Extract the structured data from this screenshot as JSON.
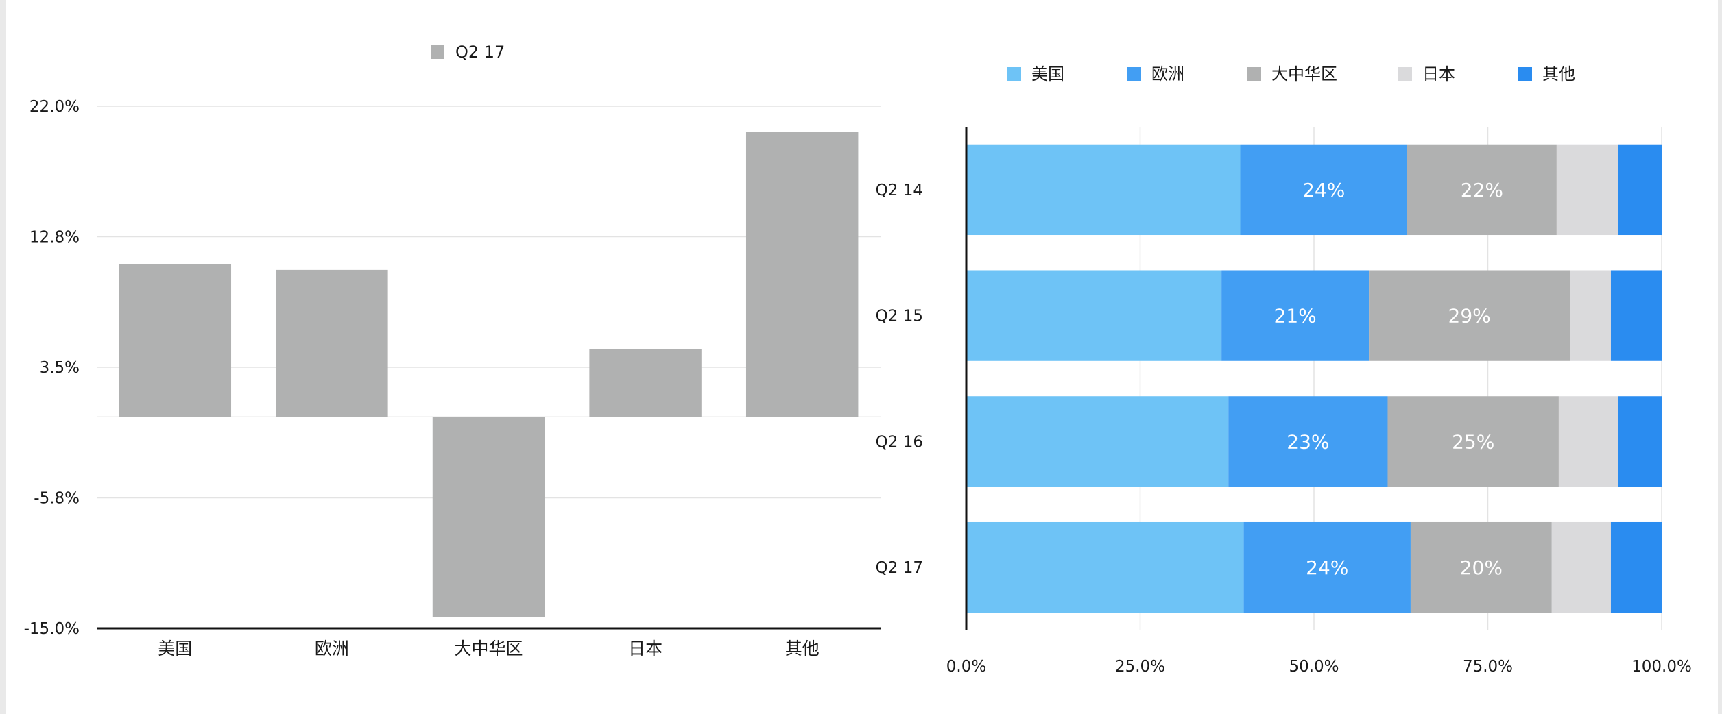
{
  "chart_data": [
    {
      "type": "bar",
      "legend": [
        "Q2 17"
      ],
      "categories": [
        "美国",
        "欧洲",
        "大中华区",
        "日本",
        "其他"
      ],
      "series": [
        {
          "name": "Q2 17",
          "values": [
            10.8,
            10.4,
            -14.2,
            4.8,
            20.2
          ],
          "color": "#b0b1b1"
        }
      ],
      "y_ticks": [
        "22.0%",
        "12.8%",
        "3.5%",
        "-5.8%",
        "-15.0%"
      ],
      "ylim": [
        -15.0,
        22.0
      ],
      "grid": true,
      "legend_position": "top"
    },
    {
      "type": "bar",
      "orientation": "horizontal",
      "stacked": true,
      "categories": [
        "Q2 14",
        "Q2 15",
        "Q2 16",
        "Q2 17"
      ],
      "series": [
        {
          "name": "美国",
          "color": "#6ec3f6",
          "values": [
            39.4,
            36.7,
            37.7,
            39.9
          ],
          "labels": [
            "",
            "",
            "",
            ""
          ]
        },
        {
          "name": "欧洲",
          "color": "#429ef3",
          "values": [
            24.0,
            21.2,
            22.9,
            24.0
          ],
          "labels": [
            "24%",
            "21%",
            "23%",
            "24%"
          ]
        },
        {
          "name": "大中华区",
          "color": "#b0b1b1",
          "values": [
            21.5,
            28.9,
            24.6,
            20.3
          ],
          "labels": [
            "22%",
            "29%",
            "25%",
            "20%"
          ]
        },
        {
          "name": "日本",
          "color": "#dadadc",
          "values": [
            8.8,
            5.9,
            8.5,
            8.5
          ],
          "labels": [
            "",
            "",
            "",
            ""
          ]
        },
        {
          "name": "其他",
          "color": "#2a8cf0",
          "values": [
            6.3,
            7.3,
            6.3,
            7.3
          ],
          "labels": [
            "",
            "",
            "",
            ""
          ]
        }
      ],
      "x_ticks": [
        "0.0%",
        "25.0%",
        "50.0%",
        "75.0%",
        "100.0%"
      ],
      "xlim": [
        0,
        100
      ],
      "grid": true,
      "legend_position": "top"
    }
  ]
}
